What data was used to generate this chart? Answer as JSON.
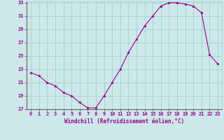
{
  "x": [
    0,
    1,
    2,
    3,
    4,
    5,
    6,
    7,
    8,
    9,
    10,
    11,
    12,
    13,
    14,
    15,
    16,
    17,
    18,
    19,
    20,
    21,
    22,
    23
  ],
  "y": [
    22.5,
    22.0,
    21.0,
    20.5,
    19.5,
    19.0,
    18.0,
    17.2,
    17.2,
    19.0,
    21.0,
    23.0,
    25.5,
    27.5,
    29.5,
    31.0,
    32.5,
    33.0,
    33.0,
    32.8,
    32.5,
    31.5,
    25.2,
    23.8
  ],
  "xlabel": "Windchill (Refroidissement éolien,°C)",
  "ylim": [
    17,
    33
  ],
  "xlim": [
    -0.5,
    23.5
  ],
  "yticks": [
    17,
    19,
    21,
    23,
    25,
    27,
    29,
    31,
    33
  ],
  "xticks": [
    0,
    1,
    2,
    3,
    4,
    5,
    6,
    7,
    8,
    9,
    10,
    11,
    12,
    13,
    14,
    15,
    16,
    17,
    18,
    19,
    20,
    21,
    22,
    23
  ],
  "line_color": "#990099",
  "marker": "*",
  "marker_size": 2.5,
  "line_width": 0.8,
  "bg_color": "#cce8e8",
  "grid_color": "#99cccc",
  "xlabel_color": "#990099",
  "tick_color": "#990099",
  "font_name": "monospace",
  "tick_fontsize": 5.0,
  "xlabel_fontsize": 5.5
}
